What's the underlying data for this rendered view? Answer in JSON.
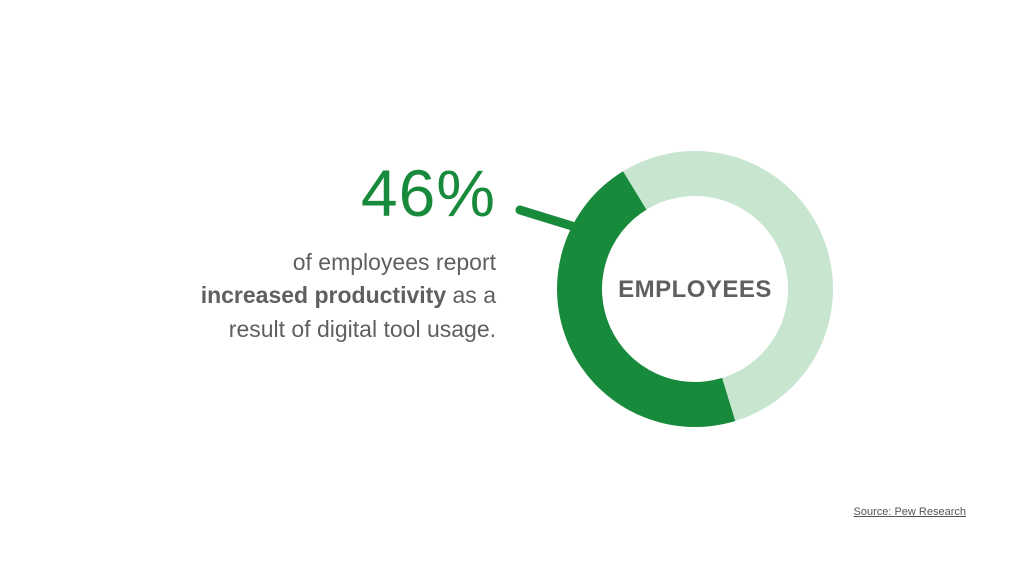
{
  "chart_data": {
    "type": "pie",
    "variant": "donut",
    "slices": [
      {
        "label": "increased productivity",
        "value": 46,
        "color": "#178a3b"
      },
      {
        "label": "",
        "value": 54,
        "color": "#c7e5cf"
      }
    ],
    "center_label": "EMPLOYEES",
    "headline_value": "46%",
    "desc_pre": "of employees report",
    "desc_bold": "increased productivity",
    "desc_mid": " as a",
    "desc_post": "result of digital tool usage.",
    "source": "Source: Pew Research"
  },
  "colors": {
    "accent": "#178a3b",
    "accent_light": "#c7e5cf",
    "text": "#5f5f5f"
  }
}
